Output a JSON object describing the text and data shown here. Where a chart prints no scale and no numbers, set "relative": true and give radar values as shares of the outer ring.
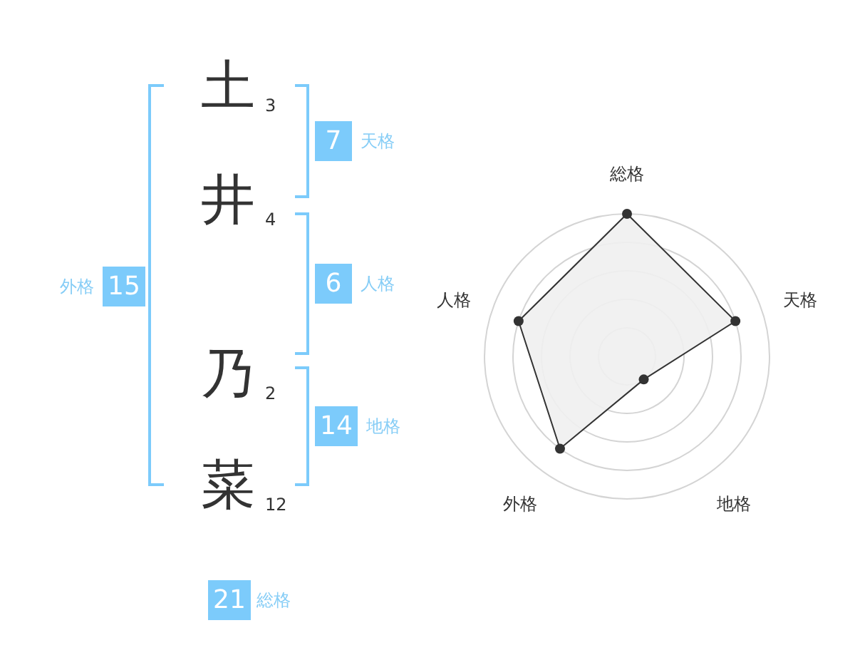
{
  "chart_data": [
    {
      "type": "other",
      "categories": [
        "土",
        "井",
        "乃",
        "菜"
      ],
      "annotations": [
        "3",
        "4",
        "2",
        "12",
        "7",
        "天格",
        "6",
        "人格",
        "14",
        "地格",
        "15",
        "外格",
        "21",
        "総格"
      ]
    },
    {
      "type": "radar",
      "categories": [
        "総格",
        "天格",
        "地格",
        "外格",
        "人格"
      ],
      "relative": true,
      "grid": true,
      "marker": "circle",
      "series": [
        {
          "color": "#333333",
          "values": [
            1,
            0.8,
            0.2,
            0.8,
            0.8
          ]
        }
      ]
    }
  ]
}
